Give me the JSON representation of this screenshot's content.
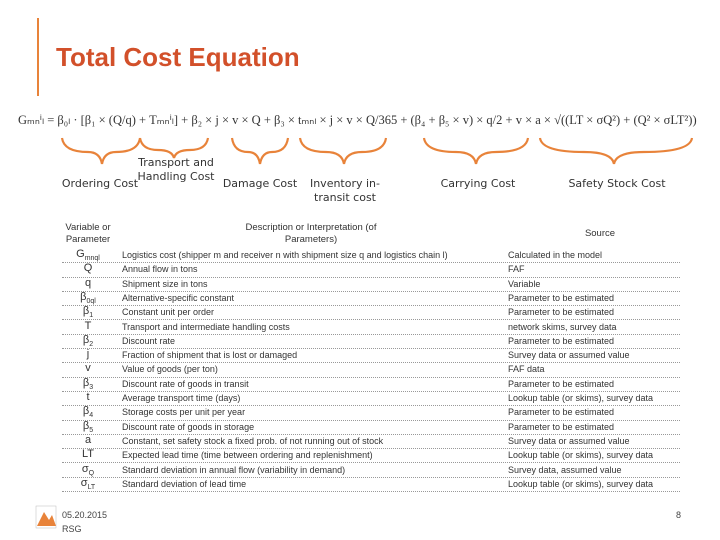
{
  "header": {
    "title": "Total Cost Equation"
  },
  "equation": "Gₘₙⁱₗ = β₀ₗ · [β₁ × (Q/q) + Tₘₙⁱₗ] + β₂ × j × v × Q + β₃ × tₘₙₗ × j × v × Q/365 + (β₄ + β₅ × v) × q/2 + v × a × √((LT × σQ²) + (Q² × σLT²))",
  "components": [
    "Ordering Cost",
    "Transport and Handling Cost",
    "Damage Cost",
    "Inventory in-transit cost",
    "Carrying Cost",
    "Safety Stock Cost"
  ],
  "table": {
    "headers": [
      "Variable or Parameter",
      "Description or Interpretation (of Parameters)",
      "Source"
    ],
    "rows": [
      [
        {
          "var": "G",
          "sub": "mnql"
        },
        "Logistics cost (shipper m and receiver n with shipment size q and logistics chain l)",
        "Calculated in the model"
      ],
      [
        {
          "var": "Q",
          "sub": null
        },
        "Annual flow in tons",
        "FAF"
      ],
      [
        {
          "var": "q",
          "sub": null
        },
        "Shipment size in tons",
        "Variable"
      ],
      [
        {
          "var": "β",
          "sub": "0ql"
        },
        "Alternative-specific constant",
        "Parameter to be estimated"
      ],
      [
        {
          "var": "β",
          "sub": "1"
        },
        "Constant unit per order",
        "Parameter to be estimated"
      ],
      [
        {
          "var": "T",
          "sub": null
        },
        "Transport and intermediate handling costs",
        "network skims, survey data"
      ],
      [
        {
          "var": "β",
          "sub": "2"
        },
        "Discount rate",
        "Parameter to be estimated"
      ],
      [
        {
          "var": "j",
          "sub": null
        },
        "Fraction of shipment that is lost or damaged",
        "Survey data or assumed value"
      ],
      [
        {
          "var": "v",
          "sub": null
        },
        "Value of goods (per ton)",
        "FAF data"
      ],
      [
        {
          "var": "β",
          "sub": "3"
        },
        "Discount rate of goods in transit",
        "Parameter to be estimated"
      ],
      [
        {
          "var": "t",
          "sub": null
        },
        "Average transport time (days)",
        "Lookup table (or skims), survey data"
      ],
      [
        {
          "var": "β",
          "sub": "4"
        },
        "Storage costs per unit per year",
        "Parameter to be estimated"
      ],
      [
        {
          "var": "β",
          "sub": "5"
        },
        "Discount rate of goods in storage",
        "Parameter to be estimated"
      ],
      [
        {
          "var": "a",
          "sub": null
        },
        "Constant, set safety stock a fixed prob. of not running out of stock",
        "Survey data or assumed value"
      ],
      [
        {
          "var": "LT",
          "sub": null
        },
        "Expected lead time (time between ordering and replenishment)",
        "Lookup table (or skims), survey data"
      ],
      [
        {
          "var": "σ",
          "sub": "Q"
        },
        "Standard deviation in annual flow (variability in demand)",
        "Survey data, assumed value"
      ],
      [
        {
          "var": "σ",
          "sub": "LT"
        },
        "Standard deviation of lead time",
        "Lookup table (or skims), survey data"
      ]
    ]
  },
  "footer": {
    "date": "05.20.2015",
    "org": "RSG",
    "page": "8"
  }
}
